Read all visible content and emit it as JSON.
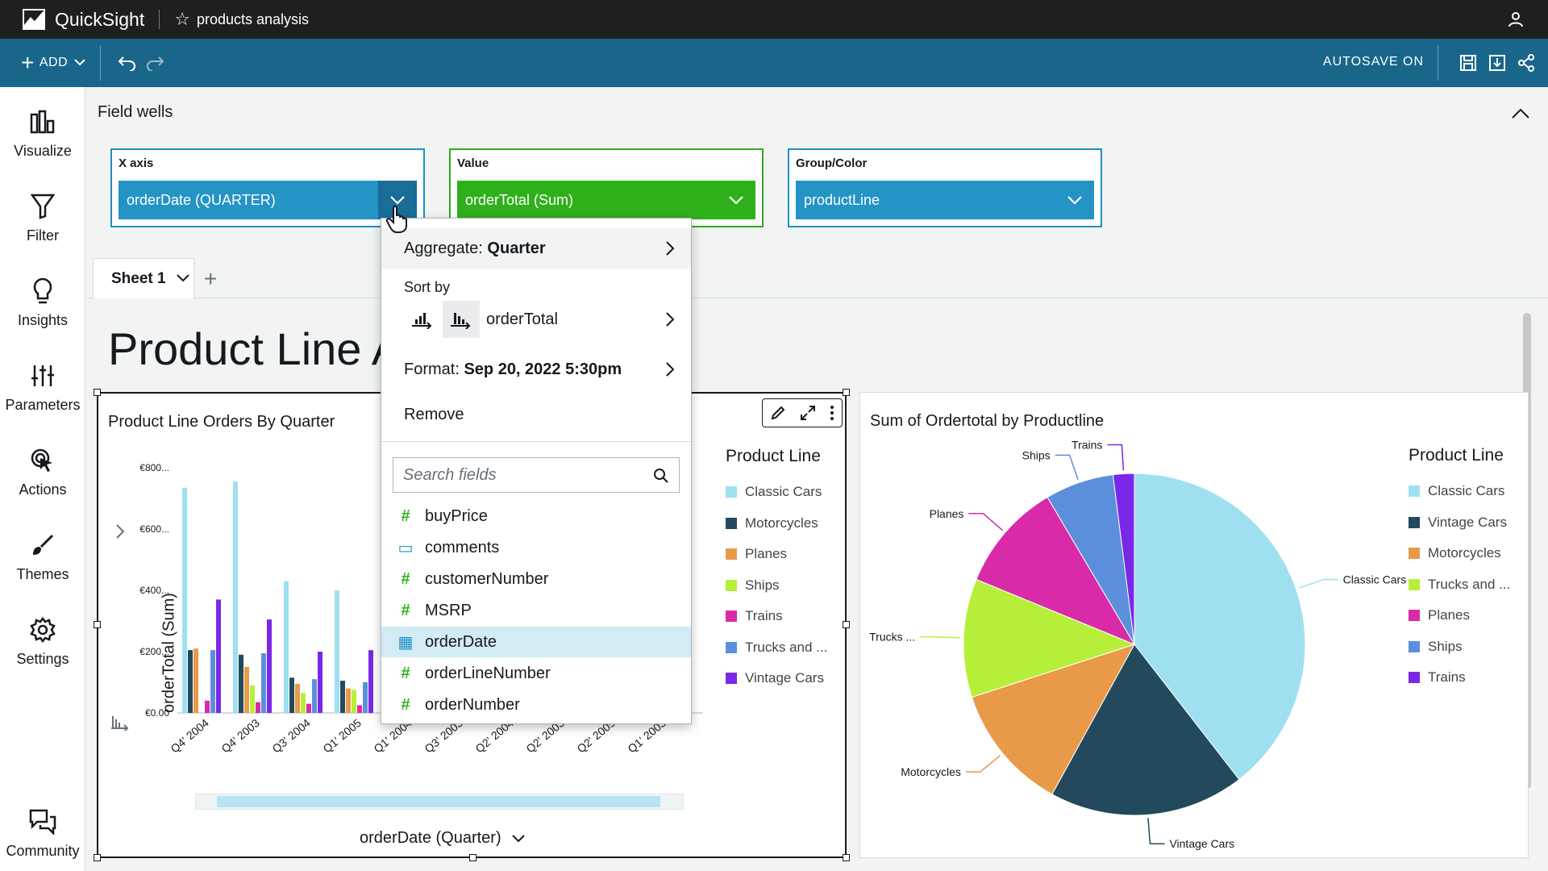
{
  "header": {
    "app_name": "QuickSight",
    "analysis_title": "products analysis"
  },
  "toolbar": {
    "add_label": "ADD",
    "autosave_label": "AUTOSAVE ON"
  },
  "leftnav": {
    "items": [
      {
        "label": "Visualize",
        "icon": "bar-chart-icon"
      },
      {
        "label": "Filter",
        "icon": "filter-icon"
      },
      {
        "label": "Insights",
        "icon": "lightbulb-icon"
      },
      {
        "label": "Parameters",
        "icon": "sliders-icon"
      },
      {
        "label": "Actions",
        "icon": "cursor-click-icon"
      },
      {
        "label": "Themes",
        "icon": "brush-icon"
      },
      {
        "label": "Settings",
        "icon": "gear-icon"
      },
      {
        "label": "Community",
        "icon": "chat-bubbles-icon"
      }
    ]
  },
  "fieldwells": {
    "title": "Field wells",
    "wells": [
      {
        "label": "X axis",
        "value": "orderDate (QUARTER)"
      },
      {
        "label": "Value",
        "value": "orderTotal (Sum)"
      },
      {
        "label": "Group/Color",
        "value": "productLine"
      }
    ]
  },
  "sheets": {
    "tabs": [
      {
        "label": "Sheet 1"
      }
    ]
  },
  "sheet_title": "Product Line A",
  "dropdown": {
    "aggregate_prefix": "Aggregate: ",
    "aggregate_value": "Quarter",
    "sort_by_label": "Sort by",
    "sort_field": "orderTotal",
    "format_prefix": "Format: ",
    "format_value": "Sep 20, 2022 5:30pm",
    "remove_label": "Remove",
    "search_placeholder": "Search fields",
    "fields": [
      {
        "name": "buyPrice",
        "type": "number"
      },
      {
        "name": "comments",
        "type": "string"
      },
      {
        "name": "customerNumber",
        "type": "number"
      },
      {
        "name": "MSRP",
        "type": "number"
      },
      {
        "name": "orderDate",
        "type": "date",
        "selected": true
      },
      {
        "name": "orderLineNumber",
        "type": "number"
      },
      {
        "name": "orderNumber",
        "type": "number"
      }
    ]
  },
  "colors": {
    "Classic Cars": "#9ee0f0",
    "Vintage Cars": "#234a5c",
    "Motorcycles": "#234a5c",
    "Planes": "#e89a48",
    "Ships": "#b6ef3a",
    "Trains": "#d92aa8",
    "Trucks and ...": "#5b8fdc",
    "Vintage": "#7a28e8"
  },
  "chart_data": [
    {
      "type": "bar",
      "title": "Product Line Orders By Quarter",
      "xlabel": "orderDate (Quarter)",
      "ylabel": "orderTotal (Sum)",
      "ylim": [
        0,
        800
      ],
      "yticks": [
        "€0.00",
        "€200...",
        "€400...",
        "€600...",
        "€800..."
      ],
      "categories": [
        "Q4' 2004",
        "Q4' 2003",
        "Q3' 2004",
        "Q1' 2005",
        "Q1' 2004",
        "Q3' 2003",
        "Q2' 2004",
        "Q2' 2003",
        "Q2' 2005",
        "Q1' 2003"
      ],
      "legend_title": "Product Line",
      "series": [
        {
          "name": "Classic Cars",
          "color": "#9ee0f0",
          "values": [
            735,
            755,
            430,
            400,
            0,
            0,
            0,
            0,
            0,
            0
          ]
        },
        {
          "name": "Motorcycles",
          "color": "#234a5c",
          "values": [
            205,
            190,
            115,
            105,
            0,
            0,
            0,
            0,
            0,
            0
          ]
        },
        {
          "name": "Planes",
          "color": "#e89a48",
          "values": [
            210,
            150,
            95,
            80,
            0,
            0,
            0,
            0,
            0,
            0
          ]
        },
        {
          "name": "Ships",
          "color": "#b6ef3a",
          "values": [
            0,
            90,
            65,
            75,
            0,
            0,
            0,
            0,
            0,
            0
          ]
        },
        {
          "name": "Trains",
          "color": "#d92aa8",
          "values": [
            40,
            35,
            30,
            25,
            0,
            0,
            0,
            0,
            0,
            0
          ]
        },
        {
          "name": "Trucks and ...",
          "color": "#5b8fdc",
          "values": [
            205,
            195,
            110,
            100,
            0,
            0,
            0,
            0,
            0,
            0
          ]
        },
        {
          "name": "Vintage Cars",
          "color": "#7a28e8",
          "values": [
            370,
            305,
            200,
            205,
            0,
            0,
            0,
            0,
            0,
            0
          ]
        }
      ]
    },
    {
      "type": "pie",
      "title": "Sum of Ordertotal by Productline",
      "legend_title": "Product Line",
      "slices": [
        {
          "name": "Classic Cars",
          "color": "#9ee0f0",
          "value": 39.5
        },
        {
          "name": "Vintage Cars",
          "color": "#234a5c",
          "value": 18.5
        },
        {
          "name": "Motorcycles",
          "color": "#e89a48",
          "value": 12.0
        },
        {
          "name": "Trucks ...",
          "color": "#b6ef3a",
          "value": 11.2
        },
        {
          "name": "Planes",
          "color": "#d92aa8",
          "value": 10.3
        },
        {
          "name": "Ships",
          "color": "#5b8fdc",
          "value": 6.5
        },
        {
          "name": "Trains",
          "color": "#7a28e8",
          "value": 2.0
        }
      ],
      "legend": [
        "Classic Cars",
        "Vintage Cars",
        "Motorcycles",
        "Trucks and ...",
        "Planes",
        "Ships",
        "Trains"
      ]
    }
  ]
}
